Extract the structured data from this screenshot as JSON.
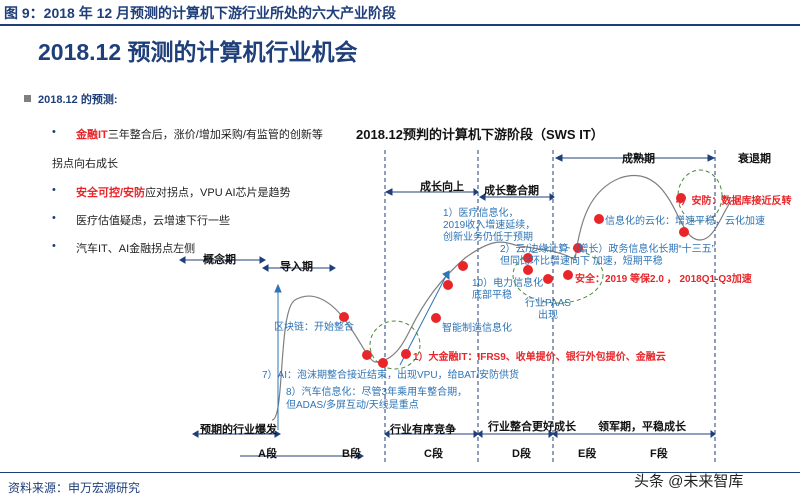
{
  "figure_title": "图 9：2018 年 12 月预测的计算机下游行业所处的六大产业阶段",
  "heading": "2018.12 预测的计算机行业机会",
  "subheading": "2018.12 的预测:",
  "bullets": [
    {
      "red": "金融IT",
      "text": "三年整合后，涨价/增加采购/有监管的创新等"
    },
    {
      "red": "",
      "text": "拐点向右成长"
    },
    {
      "red": "安全可控/安防",
      "text": "应对拐点，VPU AI芯片是趋势"
    },
    {
      "red": "",
      "text": "医疗估值疑虑，云增速下行一些"
    },
    {
      "red": "",
      "text": "汽车IT、AI金融拐点左侧"
    }
  ],
  "chart": {
    "title": "2018.12预判的计算机下游阶段（SWS IT）",
    "top_stages": [
      "概念期",
      "导入期",
      "成长向上",
      "成长整合期",
      "成熟期",
      "衰退期"
    ],
    "bottom_stages": [
      "预期的行业爆发",
      "行业有序竞争",
      "行业整合更好成长",
      "领军期，平稳成长"
    ],
    "segments": [
      "A段",
      "B段",
      "C段",
      "D段",
      "E段",
      "F段"
    ],
    "annotations": {
      "blockchain": "区块链：开始整合",
      "ai": "7）AI：泡沫期整合接近结束，出现VPU，给BAT/安防供货",
      "auto": [
        "8）汽车信息化：尽管3年乘用车整合期，",
        "但ADAS/多屏互动/天线是重点"
      ],
      "smart_mfg": "智能制造信息化",
      "finance": "1）大金融IT：IFRS9、收单提价、银行外包提价、金融云",
      "medical": [
        "1）医疗信息化，",
        "2019收入增速延续，",
        "创新业务仍低于预期"
      ],
      "cloud_edge": [
        "2）云/边缘计算（增长）政务信息化长期“十三五”",
        "但同比环比增速向下   加速，短期平稳"
      ],
      "power": [
        "10）电力信息化",
        "底部平稳"
      ],
      "paas": [
        "行业PAAS",
        "出现"
      ],
      "security": "安全：2019 等保2.0 ， 2018Q1-Q3加速",
      "info_cloud": "信息化的云化：增速平稳，云化加速",
      "defense": "4）安防：数据库接近反转"
    }
  },
  "source": "资料来源：申万宏源研究",
  "watermark": "头条 @未来智库",
  "colors": {
    "primary": "#1f3f7a",
    "accent_red": "#e8262a",
    "label_blue": "#2e74b5",
    "curve": "#7f7f7f",
    "dashed_green": "#4a8a3a"
  }
}
